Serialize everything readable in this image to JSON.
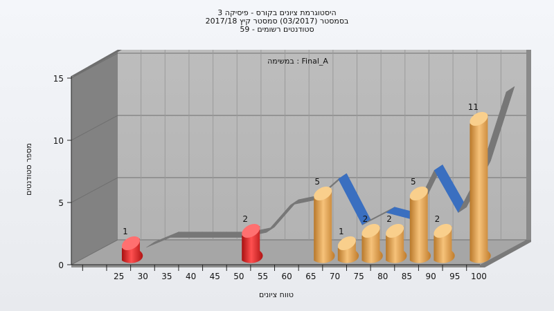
{
  "title": {
    "line1": "היסטוגרמת ציונים בקורס - פיסיקה 3",
    "line2": "בסמסטר  (03/2017)  סמסטר קיץ 2017/18",
    "line3": "סטודנטים רשומים - 59"
  },
  "colors": {
    "fail": "#e02020",
    "pass": "#e8a040",
    "ribbon_gray": "#777777",
    "ribbon_blue": "#3a6fc0"
  },
  "chart_data": {
    "type": "bar",
    "title": "היסטוגרמת ציונים בקורס - פיסיקה 3",
    "subtitle": "במשימה : Final_A",
    "xlabel": "טווח ציונים",
    "ylabel": "מספר סטודנטים",
    "ylim": [
      0,
      15
    ],
    "yticks": [
      0,
      5,
      10,
      15
    ],
    "xticks": [
      25,
      30,
      35,
      40,
      45,
      50,
      55,
      60,
      65,
      70,
      75,
      80,
      85,
      90,
      95,
      100
    ],
    "bars": [
      {
        "x": 27.5,
        "value": 1,
        "color": "fail"
      },
      {
        "x": 52.5,
        "value": 2,
        "color": "fail"
      },
      {
        "x": 67.5,
        "value": 5,
        "color": "pass"
      },
      {
        "x": 72.5,
        "value": 1,
        "color": "pass"
      },
      {
        "x": 77.5,
        "value": 2,
        "color": "pass"
      },
      {
        "x": 82.5,
        "value": 2,
        "color": "pass"
      },
      {
        "x": 87.5,
        "value": 5,
        "color": "pass"
      },
      {
        "x": 92.5,
        "value": 2,
        "color": "pass"
      },
      {
        "x": 100,
        "value": 11,
        "color": "pass"
      }
    ],
    "ribbon": [
      {
        "x": 30,
        "y": 0
      },
      {
        "x": 35,
        "y": 0.8
      },
      {
        "x": 40,
        "y": 0.8
      },
      {
        "x": 45,
        "y": 0.8
      },
      {
        "x": 50,
        "y": 0.8
      },
      {
        "x": 55,
        "y": 1.2
      },
      {
        "x": 60,
        "y": 3.4
      },
      {
        "x": 65,
        "y": 3.8
      },
      {
        "x": 70,
        "y": 5.5
      },
      {
        "x": 75,
        "y": 1.8
      },
      {
        "x": 80,
        "y": 2.8
      },
      {
        "x": 85,
        "y": 2.3
      },
      {
        "x": 90,
        "y": 6.2
      },
      {
        "x": 95,
        "y": 2.8
      },
      {
        "x": 100,
        "y": 6.5
      },
      {
        "x": 105,
        "y": 12.5
      }
    ],
    "grid": true,
    "legend": "none"
  }
}
